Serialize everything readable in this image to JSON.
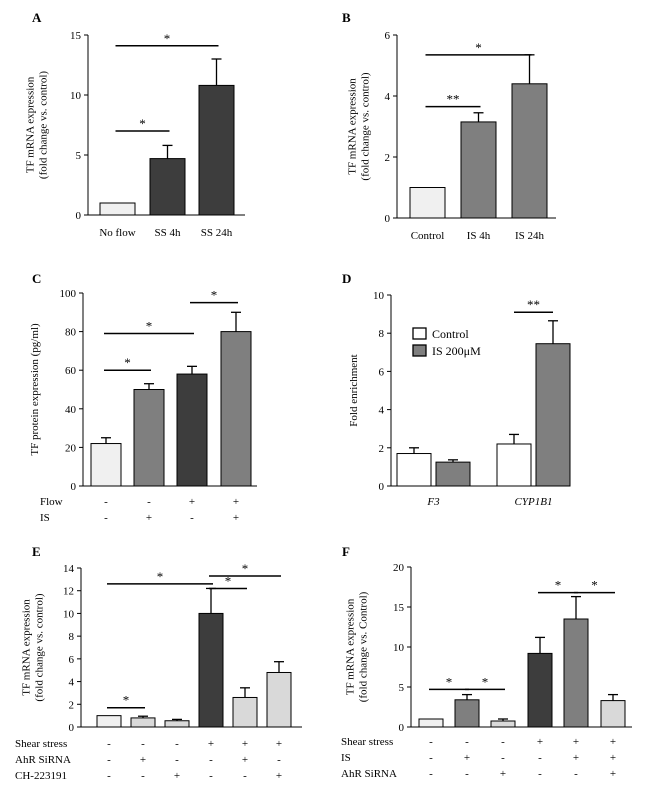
{
  "chart_data": [
    {
      "type": "bar",
      "panel": "A",
      "ylabel": [
        "TF mRNA expression",
        "(fold change vs. control)"
      ],
      "ylim": [
        0,
        15
      ],
      "yticks": [
        0,
        5,
        10,
        15
      ],
      "categories": [
        "No flow",
        "SS 4h",
        "SS 24h"
      ],
      "values": [
        1.0,
        4.7,
        10.8
      ],
      "errors": [
        0,
        1.1,
        2.2
      ],
      "colors": [
        "#f0f0f0",
        "#3d3d3d",
        "#3d3d3d"
      ],
      "significance": [
        {
          "from": 0,
          "to": 1,
          "label": "*",
          "y": 7.0
        },
        {
          "from": 0,
          "to": 2,
          "label": "*",
          "y": 14.1
        }
      ]
    },
    {
      "type": "bar",
      "panel": "B",
      "ylabel": [
        "TF mRNA expression",
        "(fold change vs. control)"
      ],
      "ylim": [
        0,
        6
      ],
      "yticks": [
        0,
        2,
        4,
        6
      ],
      "categories": [
        "Control",
        "IS 4h",
        "IS 24h"
      ],
      "values": [
        1.0,
        3.15,
        4.4
      ],
      "errors": [
        0,
        0.3,
        0.95
      ],
      "colors": [
        "#f0f0f0",
        "#7f7f7f",
        "#7f7f7f"
      ],
      "significance": [
        {
          "from": 0,
          "to": 1,
          "label": "**",
          "y": 3.65
        },
        {
          "from": 0,
          "to": 2,
          "label": "*",
          "y": 5.35
        }
      ]
    },
    {
      "type": "bar",
      "panel": "C",
      "ylabel": [
        "TF protein expression (pg/ml)"
      ],
      "ylim": [
        0,
        100
      ],
      "yticks": [
        0,
        20,
        40,
        60,
        80,
        100
      ],
      "categories": [
        "",
        "",
        "",
        ""
      ],
      "values": [
        22,
        50,
        58,
        80
      ],
      "errors": [
        3,
        3,
        4,
        10
      ],
      "colors": [
        "#f0f0f0",
        "#7f7f7f",
        "#3d3d3d",
        "#7f7f7f"
      ],
      "significance": [
        {
          "from": 0,
          "to": 1,
          "label": "*",
          "y": 60
        },
        {
          "from": 0,
          "to": 2,
          "label": "*",
          "y": 79
        },
        {
          "from": 2,
          "to": 3,
          "label": "*",
          "y": 95
        }
      ],
      "conditions": [
        {
          "label": "Flow",
          "marks": [
            "-",
            "-",
            "+",
            "+"
          ]
        },
        {
          "label": "IS",
          "marks": [
            "-",
            "+",
            "-",
            "+"
          ]
        }
      ]
    },
    {
      "type": "bar",
      "panel": "D",
      "ylabel": [
        "Fold enrichment"
      ],
      "ylim": [
        0,
        10
      ],
      "yticks": [
        0,
        2,
        4,
        6,
        8,
        10
      ],
      "groups": [
        "F3",
        "CYP1B1"
      ],
      "series": [
        {
          "name": "Control",
          "values": [
            1.7,
            2.2
          ],
          "errors": [
            0.3,
            0.5
          ],
          "color": "#ffffff"
        },
        {
          "name": "IS 200μM",
          "values": [
            1.25,
            7.45
          ],
          "errors": [
            0.12,
            1.2
          ],
          "color": "#7f7f7f"
        }
      ],
      "significance": [
        {
          "group": 1,
          "label": "**",
          "y": 9.1
        }
      ]
    },
    {
      "type": "bar",
      "panel": "E",
      "ylabel": [
        "TF mRNA expression",
        "(fold change vs. control)"
      ],
      "ylim": [
        0,
        14
      ],
      "yticks": [
        0,
        2,
        4,
        6,
        8,
        10,
        12,
        14
      ],
      "categories": [
        "",
        "",
        "",
        "",
        "",
        ""
      ],
      "values": [
        1.0,
        0.8,
        0.55,
        10.0,
        2.6,
        4.8
      ],
      "errors": [
        0,
        0.15,
        0.12,
        2.2,
        0.85,
        0.95
      ],
      "colors": [
        "#f0f0f0",
        "#d9d9d9",
        "#d9d9d9",
        "#3d3d3d",
        "#d9d9d9",
        "#d9d9d9"
      ],
      "significance": [
        {
          "from": 0,
          "to": 1,
          "label": "*",
          "y": 1.7
        },
        {
          "from": 0,
          "to": 3,
          "label": "*",
          "y": 12.6
        },
        {
          "from": 3,
          "to": 4,
          "label": "*",
          "y": 12.2
        },
        {
          "from": 3,
          "to": 5,
          "label": "*",
          "y": 13.3
        }
      ],
      "conditions": [
        {
          "label": "Shear stress",
          "marks": [
            "-",
            "-",
            "-",
            "+",
            "+",
            "+"
          ]
        },
        {
          "label": "AhR SiRNA",
          "marks": [
            "-",
            "+",
            "-",
            "-",
            "+",
            "-"
          ]
        },
        {
          "label": "CH-223191",
          "marks": [
            "-",
            "-",
            "+",
            "-",
            "-",
            "+"
          ]
        }
      ]
    },
    {
      "type": "bar",
      "panel": "F",
      "ylabel": [
        "TF mRNA expression",
        "(fold change vs. Control)"
      ],
      "ylim": [
        0,
        20
      ],
      "yticks": [
        0,
        5,
        10,
        15,
        20
      ],
      "categories": [
        "",
        "",
        "",
        "",
        "",
        ""
      ],
      "values": [
        1.0,
        3.4,
        0.75,
        9.2,
        13.5,
        3.3
      ],
      "errors": [
        0,
        0.65,
        0.25,
        2.0,
        2.8,
        0.75
      ],
      "colors": [
        "#f0f0f0",
        "#7f7f7f",
        "#d9d9d9",
        "#3d3d3d",
        "#7f7f7f",
        "#d9d9d9"
      ],
      "significance": [
        {
          "from": 0,
          "to": 1,
          "label": "*",
          "y": 4.7
        },
        {
          "from": 1,
          "to": 2,
          "label": "*",
          "y": 4.7
        },
        {
          "from": 3,
          "to": 4,
          "label": "*",
          "y": 16.8
        },
        {
          "from": 4,
          "to": 5,
          "label": "*",
          "y": 16.8
        }
      ],
      "conditions": [
        {
          "label": "Shear stress",
          "marks": [
            "-",
            "-",
            "-",
            "+",
            "+",
            "+"
          ]
        },
        {
          "label": "IS",
          "marks": [
            "-",
            "+",
            "-",
            "-",
            "+",
            "+"
          ]
        },
        {
          "label": "AhR SiRNA",
          "marks": [
            "-",
            "-",
            "+",
            "-",
            "-",
            "+"
          ]
        }
      ]
    }
  ]
}
